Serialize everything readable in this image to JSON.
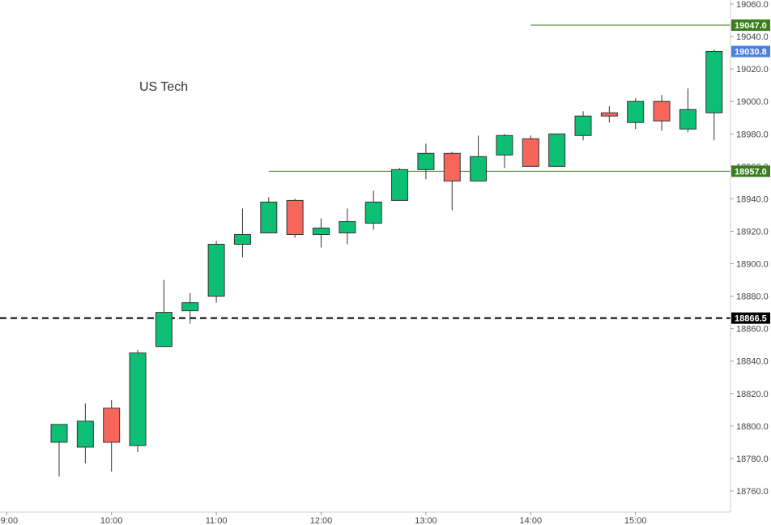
{
  "chart_data": {
    "type": "candlestick",
    "title": "US Tech",
    "ylim": [
      18750,
      19065
    ],
    "y_ticks": [
      18760,
      18780,
      18800,
      18820,
      18840,
      18860,
      18880,
      18900,
      18920,
      18940,
      18960,
      18980,
      19000,
      19020,
      19040,
      19060
    ],
    "y_tick_labels": [
      "18760.0",
      "18780.0",
      "18800.0",
      "18820.0",
      "18840.0",
      "18860.0",
      "18880.0",
      "18900.0",
      "18920.0",
      "18940.0",
      "18960.0",
      "18980.0",
      "19000.0",
      "19020.0",
      "19040.0",
      "19060.0"
    ],
    "x_ticks": [
      "09:00",
      "10:00",
      "11:00",
      "12:00",
      "13:00",
      "14:00",
      "15:00"
    ],
    "interval": "15m",
    "candles": [
      {
        "time": "09:30",
        "open": 18790,
        "high": 18801,
        "low": 18769,
        "close": 18801
      },
      {
        "time": "09:45",
        "open": 18787,
        "high": 18814,
        "low": 18777,
        "close": 18803
      },
      {
        "time": "10:00",
        "open": 18811,
        "high": 18816,
        "low": 18772,
        "close": 18790
      },
      {
        "time": "10:15",
        "open": 18788,
        "high": 18847,
        "low": 18784,
        "close": 18845
      },
      {
        "time": "10:30",
        "open": 18849,
        "high": 18890,
        "low": 18849,
        "close": 18870
      },
      {
        "time": "10:45",
        "open": 18871,
        "high": 18882,
        "low": 18863,
        "close": 18876
      },
      {
        "time": "11:00",
        "open": 18880,
        "high": 18914,
        "low": 18876,
        "close": 18912
      },
      {
        "time": "11:15",
        "open": 18912,
        "high": 18934,
        "low": 18904,
        "close": 18918
      },
      {
        "time": "11:30",
        "open": 18919,
        "high": 18941,
        "low": 18919,
        "close": 18938
      },
      {
        "time": "11:45",
        "open": 18939,
        "high": 18940,
        "low": 18916,
        "close": 18918
      },
      {
        "time": "12:00",
        "open": 18918,
        "high": 18928,
        "low": 18910,
        "close": 18922
      },
      {
        "time": "12:15",
        "open": 18919,
        "high": 18934,
        "low": 18912,
        "close": 18926
      },
      {
        "time": "12:30",
        "open": 18925,
        "high": 18945,
        "low": 18921,
        "close": 18938
      },
      {
        "time": "12:45",
        "open": 18939,
        "high": 18959,
        "low": 18939,
        "close": 18958
      },
      {
        "time": "13:00",
        "open": 18958,
        "high": 18974,
        "low": 18952,
        "close": 18968
      },
      {
        "time": "13:15",
        "open": 18968,
        "high": 18969,
        "low": 18933,
        "close": 18951
      },
      {
        "time": "13:30",
        "open": 18951,
        "high": 18979,
        "low": 18951,
        "close": 18966
      },
      {
        "time": "13:45",
        "open": 18967,
        "high": 18980,
        "low": 18959,
        "close": 18979
      },
      {
        "time": "14:00",
        "open": 18977,
        "high": 18979,
        "low": 18960,
        "close": 18960
      },
      {
        "time": "14:15",
        "open": 18960,
        "high": 18980,
        "low": 18960,
        "close": 18980
      },
      {
        "time": "14:30",
        "open": 18979,
        "high": 18994,
        "low": 18976,
        "close": 18991
      },
      {
        "time": "14:45",
        "open": 18993,
        "high": 18997,
        "low": 18987,
        "close": 18991
      },
      {
        "time": "15:00",
        "open": 18987,
        "high": 19002,
        "low": 18983,
        "close": 19000
      },
      {
        "time": "15:15",
        "open": 19000,
        "high": 19004,
        "low": 18982,
        "close": 18988
      },
      {
        "time": "15:30",
        "open": 18983,
        "high": 19008,
        "low": 18981,
        "close": 18995
      },
      {
        "time": "15:45",
        "open": 18993,
        "high": 19032,
        "low": 18976,
        "close": 19030.8
      }
    ],
    "price_lines": [
      {
        "price": 19047.0,
        "label": "19047.0",
        "style": "solid",
        "color": "#3a7d1e",
        "from_time": "14:00"
      },
      {
        "price": 18957.0,
        "label": "18957.0",
        "style": "solid",
        "color": "#3a7d1e",
        "from_time": "11:30"
      },
      {
        "price": 18866.5,
        "label": "18866.5",
        "style": "dashed",
        "color": "#000000",
        "from_time": "09:00"
      }
    ],
    "current_price": {
      "price": 19030.8,
      "label": "19030.8",
      "color": "#4a7fe0"
    },
    "colors": {
      "up": "#0dbf75",
      "down": "#f6665b",
      "wick": "#333333",
      "grid": "#ffffff",
      "axis": "#cccccc"
    },
    "grid": false,
    "legend": "none"
  }
}
